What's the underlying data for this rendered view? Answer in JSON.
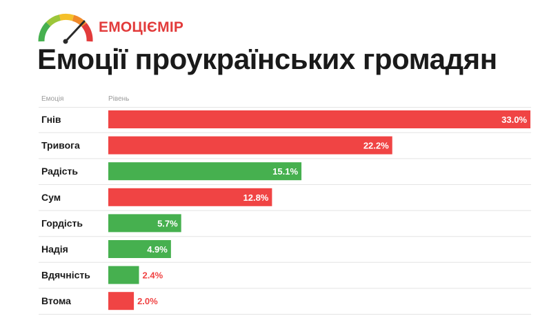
{
  "brand": {
    "name": "ЕМОЦІЄМІР",
    "logo_icon": "gauge-icon",
    "color": "#e23b3b"
  },
  "title": "Емоції проукраїнських громадян",
  "headers": {
    "label": "Емоція",
    "level": "Рівень"
  },
  "colors": {
    "negative": "#f04444",
    "positive": "#46b04f",
    "text_inside": "#ffffff",
    "text_outside": "#f04444",
    "grid": "#e4e4e4"
  },
  "chart_data": {
    "type": "bar",
    "orientation": "horizontal",
    "title": "Емоції проукраїнських громадян",
    "xlabel": "Рівень",
    "ylabel": "Емоція",
    "xlim": [
      0,
      33.0
    ],
    "categories": [
      "Гнів",
      "Тривога",
      "Радість",
      "Сум",
      "Гордість",
      "Надія",
      "Вдячність",
      "Втома"
    ],
    "values": [
      33.0,
      22.2,
      15.1,
      12.8,
      5.7,
      4.9,
      2.4,
      2.0
    ],
    "value_labels": [
      "33.0%",
      "22.2%",
      "15.1%",
      "12.8%",
      "5.7%",
      "4.9%",
      "2.4%",
      "2.0%"
    ],
    "sentiment": [
      "negative",
      "negative",
      "positive",
      "negative",
      "positive",
      "positive",
      "positive",
      "negative"
    ],
    "grid": false,
    "legend": "none"
  }
}
